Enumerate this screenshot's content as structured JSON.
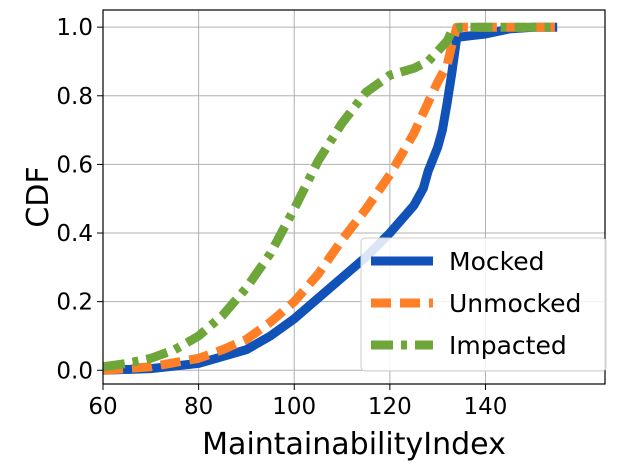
{
  "chart_data": {
    "type": "line",
    "title": "",
    "xlabel": "MaintainabilityIndex",
    "ylabel": "CDF",
    "xlim": [
      60,
      165
    ],
    "ylim": [
      -0.04,
      1.05
    ],
    "xticks": [
      60,
      80,
      100,
      120,
      140
    ],
    "yticks": [
      0.0,
      0.2,
      0.4,
      0.6,
      0.8,
      1.0
    ],
    "xtick_labels": [
      "60",
      "80",
      "100",
      "120",
      "140"
    ],
    "ytick_labels": [
      "0.0",
      "0.2",
      "0.4",
      "0.6",
      "0.8",
      "1.0"
    ],
    "grid": true,
    "legend_position": "lower-right",
    "series": [
      {
        "name": "Mocked",
        "color": "#1152b8",
        "style": "solid",
        "x": [
          60,
          70,
          80,
          90,
          95,
          100,
          105,
          110,
          115,
          120,
          125,
          127,
          128,
          130,
          131,
          132,
          133,
          134,
          137,
          140,
          145,
          150,
          155
        ],
        "y": [
          0.0,
          0.005,
          0.02,
          0.06,
          0.1,
          0.15,
          0.21,
          0.27,
          0.33,
          0.4,
          0.48,
          0.53,
          0.58,
          0.65,
          0.7,
          0.78,
          0.87,
          0.97,
          0.975,
          0.98,
          0.995,
          1.0,
          1.0
        ]
      },
      {
        "name": "Unmocked",
        "color": "#ff7f27",
        "style": "dashed",
        "x": [
          60,
          70,
          80,
          85,
          90,
          95,
          100,
          105,
          110,
          115,
          120,
          125,
          128,
          130,
          132,
          133,
          134,
          137,
          140,
          145,
          150,
          155
        ],
        "y": [
          0.0,
          0.01,
          0.035,
          0.06,
          0.09,
          0.14,
          0.2,
          0.28,
          0.38,
          0.47,
          0.57,
          0.69,
          0.78,
          0.84,
          0.89,
          0.95,
          1.0,
          1.0,
          1.0,
          1.0,
          1.0,
          1.0
        ]
      },
      {
        "name": "Impacted",
        "color": "#6fa63a",
        "style": "dashdot",
        "x": [
          60,
          65,
          70,
          75,
          80,
          85,
          90,
          95,
          100,
          105,
          110,
          115,
          118,
          120,
          125,
          128,
          130,
          132,
          133,
          135,
          140,
          145,
          150,
          155
        ],
        "y": [
          0.01,
          0.02,
          0.035,
          0.06,
          0.1,
          0.16,
          0.24,
          0.34,
          0.47,
          0.61,
          0.72,
          0.81,
          0.84,
          0.86,
          0.88,
          0.9,
          0.93,
          0.96,
          0.99,
          1.0,
          1.0,
          1.0,
          1.0,
          1.0
        ]
      }
    ]
  }
}
